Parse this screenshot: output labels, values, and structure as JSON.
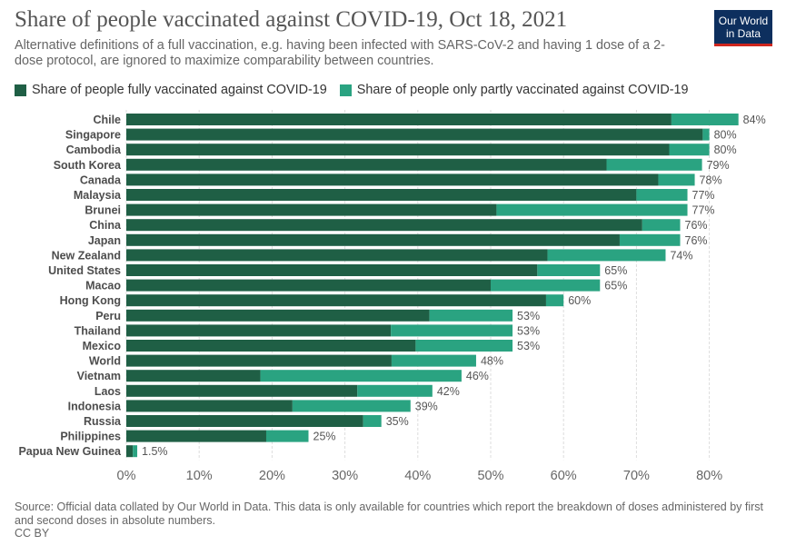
{
  "header": {
    "title": "Share of people vaccinated against COVID-19, Oct 18, 2021",
    "subtitle": "Alternative definitions of a full vaccination, e.g. having been infected with SARS-CoV-2 and having 1 dose of a 2-dose protocol, are ignored to maximize comparability between countries.",
    "logo_line1": "Our World",
    "logo_line2": "in Data"
  },
  "legend": {
    "fully": "Share of people fully vaccinated against COVID-19",
    "partly": "Share of people only partly vaccinated against COVID-19"
  },
  "colors": {
    "fully": "#1f5f45",
    "partly": "#2aa381",
    "logo_bg": "#0d2f5e",
    "logo_accent": "#ce261e"
  },
  "footer": {
    "source": "Source: Official data collated by Our World in Data. This data is only available for countries which report the breakdown of doses administered by first and second doses in absolute numbers.",
    "license": "CC BY"
  },
  "chart_data": {
    "type": "bar",
    "orientation": "horizontal",
    "stacked": true,
    "categories": [
      "Chile",
      "Singapore",
      "Cambodia",
      "South Korea",
      "Canada",
      "Malaysia",
      "Brunei",
      "China",
      "Japan",
      "New Zealand",
      "United States",
      "Macao",
      "Hong Kong",
      "Peru",
      "Thailand",
      "Mexico",
      "World",
      "Vietnam",
      "Laos",
      "Indonesia",
      "Russia",
      "Philippines",
      "Papua New Guinea"
    ],
    "series": [
      {
        "name": "Share of people fully vaccinated against COVID-19",
        "values": [
          74.8,
          79.1,
          74.5,
          65.9,
          73.0,
          70.0,
          50.8,
          70.8,
          67.7,
          57.8,
          56.4,
          50.0,
          57.6,
          41.6,
          36.3,
          39.7,
          36.4,
          18.4,
          31.7,
          22.8,
          32.5,
          19.2,
          0.9
        ]
      },
      {
        "name": "Share of people only partly vaccinated against COVID-19",
        "values": [
          9.2,
          0.9,
          5.5,
          13.1,
          5.0,
          7.0,
          26.2,
          5.2,
          8.3,
          16.2,
          8.6,
          15.0,
          2.4,
          11.4,
          16.7,
          13.3,
          11.6,
          27.6,
          10.3,
          16.2,
          2.5,
          5.8,
          0.6
        ]
      }
    ],
    "totals_labels": [
      "84%",
      "80%",
      "80%",
      "79%",
      "78%",
      "77%",
      "77%",
      "76%",
      "76%",
      "74%",
      "65%",
      "65%",
      "60%",
      "53%",
      "53%",
      "53%",
      "48%",
      "46%",
      "42%",
      "39%",
      "35%",
      "25%",
      "1.5%"
    ],
    "x_ticks": [
      0,
      10,
      20,
      30,
      40,
      50,
      60,
      70,
      80
    ],
    "x_tick_labels": [
      "0%",
      "10%",
      "20%",
      "30%",
      "40%",
      "50%",
      "60%",
      "70%",
      "80%"
    ],
    "xlim": [
      0,
      84
    ],
    "grid": true
  }
}
